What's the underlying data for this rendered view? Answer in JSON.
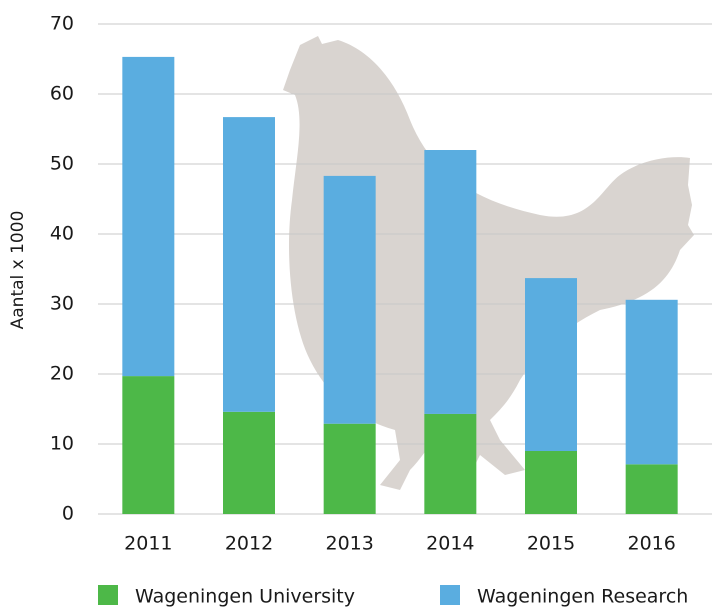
{
  "chart_data": {
    "type": "stacked_bar",
    "y_label": "Aantal x 1000",
    "categories": [
      "2011",
      "2012",
      "2013",
      "2014",
      "2015",
      "2016"
    ],
    "series": [
      {
        "name": "Wageningen University",
        "color": "#4db848",
        "values": [
          19.7,
          14.6,
          12.9,
          14.3,
          9.0,
          7.1
        ]
      },
      {
        "name": "Wageningen Research",
        "color": "#5aade0",
        "values": [
          45.6,
          42.1,
          35.4,
          37.7,
          24.7,
          23.5
        ]
      }
    ],
    "ylim": [
      0,
      70
    ],
    "yticks": [
      0,
      10,
      20,
      30,
      40,
      50,
      60,
      70
    ],
    "grid": true
  }
}
